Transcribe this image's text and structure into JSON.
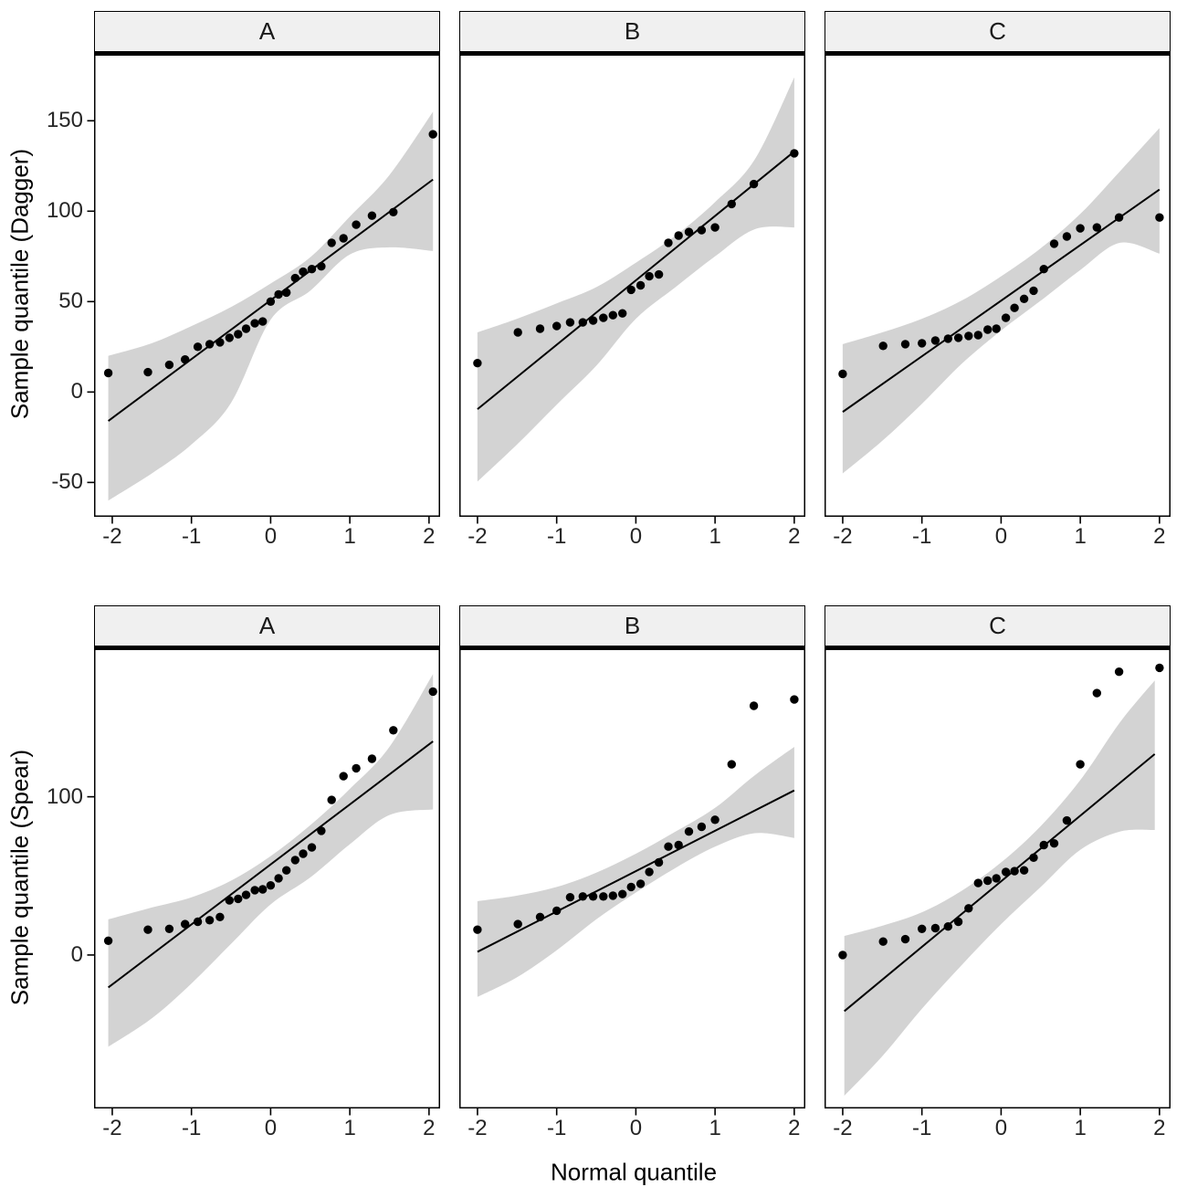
{
  "chart_data": {
    "type": "scatter",
    "subtype": "qq-plot-facet-grid",
    "xlabel": "Normal quantile",
    "ylabels": [
      "Sample quantile (Dagger)",
      "Sample quantile (Spear)"
    ],
    "facet_columns": [
      "A",
      "B",
      "C"
    ],
    "facet_rows": [
      "Dagger",
      "Spear"
    ],
    "xlim": [
      -2.23,
      2.14
    ],
    "x_ticks": [
      "-2",
      "-1",
      "0",
      "1",
      "2"
    ],
    "grid": "off",
    "legend": "none",
    "colors": {
      "band": "#D3D3D3",
      "line": "#000000",
      "point": "#000000",
      "strip_fill": "#F0F0F0",
      "strip_border": "#000000",
      "panel_border": "#000000",
      "tick_text": "#262626",
      "title_text": "#000000",
      "background": "#FFFFFF"
    },
    "rows": [
      {
        "ylabel": "Sample quantile (Dagger)",
        "ylim": [
          -69,
          188
        ],
        "yticks": [
          "150",
          "100",
          "50",
          "0",
          "-50"
        ]
      },
      {
        "ylabel": "Sample quantile (Spear)",
        "ylim": [
          -97,
          195
        ],
        "yticks": [
          "100",
          "0"
        ]
      }
    ],
    "panels": [
      {
        "id": "dagger-a",
        "facet": "A",
        "row": 0,
        "col": 0,
        "x": [
          -2.05,
          -1.55,
          -1.28,
          -1.08,
          -0.92,
          -0.77,
          -0.64,
          -0.52,
          -0.41,
          -0.31,
          -0.2,
          -0.1,
          0,
          0.1,
          0.2,
          0.31,
          0.41,
          0.52,
          0.64,
          0.77,
          0.92,
          1.08,
          1.28,
          1.55,
          2.05
        ],
        "y": [
          10.5,
          11,
          15,
          18,
          25,
          26.5,
          27.5,
          30,
          32,
          35,
          38,
          39,
          50,
          54,
          55,
          63,
          66.5,
          68,
          69.5,
          82.5,
          85,
          92.5,
          97.5,
          99.5,
          142.5
        ],
        "line": {
          "x1": -2.05,
          "y1": -16,
          "x2": 2.05,
          "y2": 117.5
        },
        "band": {
          "x": [
            -2.05,
            -1.5,
            -1,
            -0.5,
            0,
            0.5,
            1,
            1.5,
            2.05
          ],
          "hi": [
            20,
            27,
            36.5,
            47,
            60,
            74.5,
            97,
            120,
            155
          ],
          "lo": [
            -60,
            -45,
            -29,
            -6,
            40,
            56,
            76,
            80,
            78
          ]
        }
      },
      {
        "id": "dagger-b",
        "facet": "B",
        "row": 0,
        "col": 1,
        "x": [
          -2.0,
          -1.49,
          -1.21,
          -1.0,
          -0.83,
          -0.67,
          -0.54,
          -0.41,
          -0.29,
          -0.17,
          -0.06,
          0.06,
          0.17,
          0.29,
          0.41,
          0.54,
          0.67,
          0.83,
          1.0,
          1.21,
          1.49,
          2.0
        ],
        "y": [
          16,
          33,
          35,
          36.5,
          38.5,
          38.5,
          39.5,
          41,
          42.5,
          43.5,
          56.5,
          59,
          64,
          65,
          82.5,
          86.5,
          88.5,
          89.5,
          91,
          104,
          115,
          132
        ],
        "line": {
          "x1": -2.0,
          "y1": -9.5,
          "x2": 2.0,
          "y2": 133
        },
        "band": {
          "x": [
            -2.0,
            -1.5,
            -1,
            -0.5,
            0,
            0.5,
            1,
            1.5,
            2.0
          ],
          "hi": [
            33,
            40.5,
            49,
            58,
            71.5,
            86.5,
            105,
            128.5,
            174
          ],
          "lo": [
            -49.5,
            -29,
            -7,
            14.5,
            40.5,
            58,
            75,
            90,
            91
          ]
        }
      },
      {
        "id": "dagger-c",
        "facet": "C",
        "row": 0,
        "col": 2,
        "x": [
          -2.0,
          -1.49,
          -1.21,
          -1.0,
          -0.83,
          -0.67,
          -0.54,
          -0.41,
          -0.29,
          -0.17,
          -0.06,
          0.06,
          0.17,
          0.29,
          0.41,
          0.54,
          0.67,
          0.83,
          1.0,
          1.21,
          1.49,
          2.0
        ],
        "y": [
          10,
          25.5,
          26.5,
          27,
          28.5,
          29.5,
          30,
          31,
          31.5,
          34.5,
          35,
          41,
          46.5,
          51.5,
          56,
          68,
          82,
          86,
          90.5,
          91,
          96.5,
          96.5
        ],
        "line": {
          "x1": -2.0,
          "y1": -11,
          "x2": 2.0,
          "y2": 112
        },
        "band": {
          "x": [
            -2.0,
            -1.5,
            -1,
            -0.5,
            0,
            0.5,
            1,
            1.5,
            2.0
          ],
          "hi": [
            26.5,
            33,
            40.5,
            50.5,
            64,
            79.5,
            98.5,
            122,
            146
          ],
          "lo": [
            -45,
            -27,
            -6.5,
            15.5,
            34,
            50.5,
            67.5,
            82.5,
            76.5
          ]
        }
      },
      {
        "id": "spear-a",
        "facet": "A",
        "row": 1,
        "col": 0,
        "x": [
          -2.05,
          -1.55,
          -1.28,
          -1.08,
          -0.92,
          -0.77,
          -0.64,
          -0.52,
          -0.41,
          -0.31,
          -0.2,
          -0.1,
          0,
          0.1,
          0.2,
          0.31,
          0.41,
          0.52,
          0.64,
          0.77,
          0.92,
          1.08,
          1.28,
          1.55,
          2.05
        ],
        "y": [
          9,
          16,
          16.5,
          19.5,
          21,
          22,
          24,
          34.5,
          35.5,
          38,
          41,
          41.5,
          44,
          48.5,
          53.5,
          60,
          64,
          68,
          78.5,
          98,
          113,
          118,
          124,
          142,
          166.5
        ],
        "line": {
          "x1": -2.05,
          "y1": -20.5,
          "x2": 2.05,
          "y2": 135
        },
        "band": {
          "x": [
            -2.05,
            -1.5,
            -1,
            -0.5,
            0,
            0.5,
            1,
            1.5,
            2.05
          ],
          "hi": [
            22.5,
            30,
            36.5,
            47,
            62.5,
            82,
            105,
            131.5,
            177.5
          ],
          "lo": [
            -58,
            -40,
            -18,
            7,
            32,
            49,
            70,
            88.5,
            92
          ]
        }
      },
      {
        "id": "spear-b",
        "facet": "B",
        "row": 1,
        "col": 1,
        "x": [
          -2.0,
          -1.49,
          -1.21,
          -1.0,
          -0.83,
          -0.67,
          -0.54,
          -0.41,
          -0.29,
          -0.17,
          -0.06,
          0.06,
          0.17,
          0.29,
          0.41,
          0.54,
          0.67,
          0.83,
          1.0,
          1.21,
          1.49,
          2.0
        ],
        "y": [
          16,
          19.5,
          24,
          28,
          36.5,
          37,
          37,
          37,
          37.5,
          38.5,
          43,
          45,
          52.5,
          58.5,
          68.5,
          69.5,
          78,
          81,
          85.5,
          120.5,
          157.5,
          161.5
        ],
        "line": {
          "x1": -2.0,
          "y1": 2,
          "x2": 2.0,
          "y2": 104
        },
        "band": {
          "x": [
            -2.0,
            -1.5,
            -1,
            -0.5,
            0,
            0.5,
            1,
            1.5,
            2.0
          ],
          "hi": [
            34,
            37.5,
            43,
            52,
            64,
            78,
            93,
            113.5,
            131.5
          ],
          "lo": [
            -26.5,
            -14,
            3,
            22.5,
            39.5,
            55,
            68.5,
            77,
            74
          ]
        }
      },
      {
        "id": "spear-c",
        "facet": "C",
        "row": 1,
        "col": 2,
        "x": [
          -2.0,
          -1.49,
          -1.21,
          -1.0,
          -0.83,
          -0.67,
          -0.54,
          -0.41,
          -0.29,
          -0.17,
          -0.06,
          0.06,
          0.17,
          0.29,
          0.41,
          0.54,
          0.67,
          0.83,
          1.0,
          1.21,
          1.49,
          2.0
        ],
        "y": [
          0,
          8.5,
          10,
          16.5,
          17,
          18,
          21,
          29.5,
          45.5,
          47,
          48.5,
          52.5,
          53,
          53.5,
          61.5,
          69.5,
          70.5,
          85,
          120.5,
          165.5,
          179,
          181.5
        ],
        "line": {
          "x1": -1.98,
          "y1": -35.5,
          "x2": 1.94,
          "y2": 127
        },
        "band": {
          "x": [
            -1.98,
            -1.5,
            -1,
            -0.5,
            0,
            0.5,
            1,
            1.5,
            1.94
          ],
          "hi": [
            12,
            18.5,
            27,
            40.5,
            58.5,
            81.5,
            110.5,
            147,
            173.5
          ],
          "lo": [
            -89,
            -64,
            -34,
            -6.5,
            19.5,
            43,
            66.5,
            78,
            79
          ]
        }
      }
    ]
  }
}
